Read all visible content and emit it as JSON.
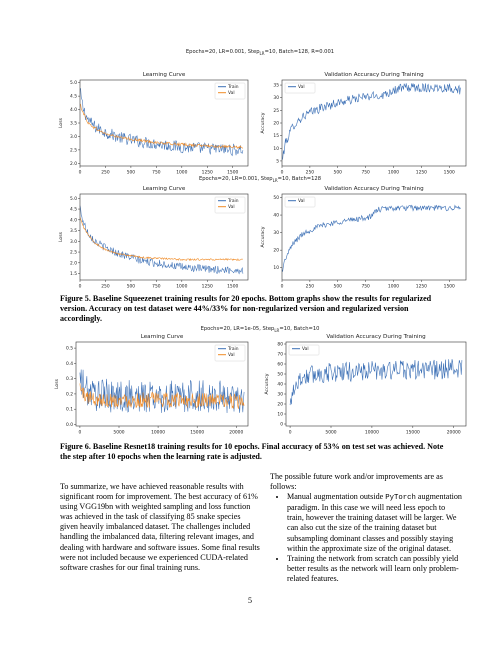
{
  "figures": [
    {
      "suptitle": "Epochs=20, LR=0.001, Step",
      "suptitle_sub": "LR",
      "suptitle_tail": "=10, Batch=128, R=0.001"
    },
    {
      "suptitle": "Epochs=20, LR=0.001, Step",
      "suptitle_sub": "LR",
      "suptitle_tail": "=10, Batch=128"
    },
    {
      "suptitle": "Epochs=20, LR=1e-05, Step",
      "suptitle_sub": "LR",
      "suptitle_tail": "=10, Batch=10"
    }
  ],
  "chart_data": [
    {
      "id": "fig5-top-loss",
      "type": "line",
      "title": "Learning Curve",
      "xlabel": "",
      "ylabel": "Loss",
      "xlim": [
        0,
        1650
      ],
      "ylim": [
        1.9,
        5.1
      ],
      "xticks": [
        0,
        250,
        500,
        750,
        1000,
        1250,
        1500
      ],
      "yticks": [
        2.0,
        2.5,
        3.0,
        3.5,
        4.0,
        4.5,
        5.0
      ],
      "ytick_labels": [
        "2.0",
        "2.5",
        "3.0",
        "3.5",
        "4.0",
        "4.5",
        "5.0"
      ],
      "legend": "top-right",
      "series": [
        {
          "name": "Train",
          "color": "#3b6fb5",
          "x": [
            0,
            30,
            80,
            150,
            250,
            400,
            600,
            800,
            1000,
            1250,
            1500,
            1600
          ],
          "y": [
            4.7,
            4.05,
            3.6,
            3.35,
            3.15,
            2.95,
            2.8,
            2.7,
            2.6,
            2.55,
            2.5,
            2.5
          ],
          "noise": 0.22
        },
        {
          "name": "Val",
          "color": "#f08a24",
          "x": [
            0,
            30,
            80,
            150,
            250,
            400,
            600,
            800,
            1000,
            1250,
            1500,
            1600
          ],
          "y": [
            4.2,
            3.9,
            3.5,
            3.3,
            3.1,
            2.95,
            2.85,
            2.75,
            2.7,
            2.65,
            2.6,
            2.6
          ],
          "noise": 0.05
        }
      ]
    },
    {
      "id": "fig5-top-acc",
      "type": "line",
      "title": "Validation Accuracy During Training",
      "xlabel": "",
      "ylabel": "Accuracy",
      "xlim": [
        0,
        1650
      ],
      "ylim": [
        3,
        37
      ],
      "xticks": [
        0,
        250,
        500,
        750,
        1000,
        1250,
        1500
      ],
      "yticks": [
        5,
        10,
        15,
        20,
        25,
        30,
        35
      ],
      "ytick_labels": [
        "5",
        "10",
        "15",
        "20",
        "25",
        "30",
        "35"
      ],
      "legend": "top-left",
      "series": [
        {
          "name": "Val",
          "color": "#3b6fb5",
          "x": [
            0,
            30,
            100,
            200,
            350,
            500,
            700,
            900,
            1000,
            1100,
            1300,
            1500,
            1600
          ],
          "y": [
            5,
            12,
            19,
            23,
            26,
            28,
            30,
            31,
            33,
            34,
            34,
            34,
            33
          ],
          "noise": 1.8
        }
      ]
    },
    {
      "id": "fig5-bottom-loss",
      "type": "line",
      "title": "Learning Curve",
      "xlabel": "",
      "ylabel": "Loss",
      "xlim": [
        0,
        1650
      ],
      "ylim": [
        1.2,
        5.2
      ],
      "xticks": [
        0,
        250,
        500,
        750,
        1000,
        1250,
        1500
      ],
      "yticks": [
        1.5,
        2.0,
        2.5,
        3.0,
        3.5,
        4.0,
        4.5,
        5.0
      ],
      "ytick_labels": [
        "1.5",
        "2.0",
        "2.5",
        "3.0",
        "3.5",
        "4.0",
        "4.5",
        "5.0"
      ],
      "legend": "top-right",
      "series": [
        {
          "name": "Train",
          "color": "#3b6fb5",
          "x": [
            0,
            30,
            80,
            150,
            250,
            400,
            600,
            800,
            1000,
            1250,
            1500,
            1600
          ],
          "y": [
            4.6,
            3.9,
            3.4,
            3.0,
            2.7,
            2.4,
            2.1,
            1.95,
            1.8,
            1.7,
            1.65,
            1.65
          ],
          "noise": 0.18
        },
        {
          "name": "Val",
          "color": "#f08a24",
          "x": [
            0,
            30,
            80,
            150,
            250,
            400,
            600,
            800,
            1000,
            1250,
            1500,
            1600
          ],
          "y": [
            4.1,
            3.7,
            3.3,
            2.9,
            2.6,
            2.4,
            2.25,
            2.2,
            2.15,
            2.15,
            2.15,
            2.15
          ],
          "noise": 0.04
        }
      ]
    },
    {
      "id": "fig5-bottom-acc",
      "type": "line",
      "title": "Validation Accuracy During Training",
      "xlabel": "",
      "ylabel": "Accuracy",
      "xlim": [
        0,
        1650
      ],
      "ylim": [
        3,
        52
      ],
      "xticks": [
        0,
        250,
        500,
        750,
        1000,
        1250,
        1500
      ],
      "yticks": [
        10,
        20,
        30,
        40,
        50
      ],
      "ytick_labels": [
        "10",
        "20",
        "30",
        "40",
        "50"
      ],
      "legend": "top-left",
      "series": [
        {
          "name": "Val",
          "color": "#3b6fb5",
          "x": [
            0,
            30,
            100,
            200,
            350,
            500,
            700,
            800,
            850,
            1000,
            1200,
            1400,
            1600
          ],
          "y": [
            8,
            15,
            24,
            30,
            34,
            36,
            38,
            39,
            43,
            44,
            44,
            44,
            44
          ],
          "noise": 1.6
        }
      ]
    },
    {
      "id": "fig6-loss",
      "type": "line",
      "title": "Learning Curve",
      "xlabel": "",
      "ylabel": "Loss",
      "xlim": [
        -500,
        21500
      ],
      "ylim": [
        -0.01,
        0.54
      ],
      "xticks": [
        0,
        5000,
        10000,
        15000,
        20000
      ],
      "yticks": [
        0.0,
        0.1,
        0.2,
        0.3,
        0.4,
        0.5
      ],
      "ytick_labels": [
        "0.0",
        "0.1",
        "0.2",
        "0.3",
        "0.4",
        "0.5"
      ],
      "legend": "top-right",
      "series": [
        {
          "name": "Train",
          "color": "#3b6fb5",
          "x": [
            0,
            400,
            1500,
            3000,
            6000,
            10000,
            15000,
            20000,
            21000
          ],
          "y": [
            0.3,
            0.25,
            0.2,
            0.19,
            0.18,
            0.18,
            0.18,
            0.18,
            0.18
          ],
          "noise": 0.11
        },
        {
          "name": "Val",
          "color": "#f08a24",
          "x": [
            0,
            400,
            1500,
            3000,
            6000,
            10000,
            15000,
            20000,
            21000
          ],
          "y": [
            0.25,
            0.2,
            0.17,
            0.16,
            0.16,
            0.16,
            0.16,
            0.15,
            0.15
          ],
          "noise": 0.05
        }
      ]
    },
    {
      "id": "fig6-acc",
      "type": "line",
      "title": "Validation Accuracy During Training",
      "xlabel": "",
      "ylabel": "Accuracy",
      "xlim": [
        -500,
        21500
      ],
      "ylim": [
        -2,
        82
      ],
      "xticks": [
        0,
        5000,
        10000,
        15000,
        20000
      ],
      "yticks": [
        0,
        10,
        20,
        30,
        40,
        50,
        60,
        70,
        80
      ],
      "ytick_labels": [
        "0",
        "10",
        "20",
        "30",
        "40",
        "50",
        "60",
        "70",
        "80"
      ],
      "legend": "top-left",
      "series": [
        {
          "name": "Val",
          "color": "#3b6fb5",
          "x": [
            0,
            300,
            1500,
            3000,
            6000,
            10000,
            15000,
            20000,
            21000
          ],
          "y": [
            15,
            35,
            47,
            50,
            52,
            53,
            54,
            55,
            55
          ],
          "noise": 10
        }
      ]
    }
  ],
  "captions": {
    "fig5": "Figure 5. Baseline Squeezenet training results for 20 epochs. Bottom graphs show the results for regularized version. Accuracy on test dataset were 44%/33% for non-regularized version and regularized version accordingly.",
    "fig6": "Figure 6. Baseline Resnet18 training results for 10 epochs. Final accuracy of 53% on test set was achieved. Note the step after 10 epochs when the learning rate is adjusted."
  },
  "body": {
    "left_paragraph": "To summarize, we have achieved reasonable results with significant room for improvement. The best accuracy of 61% using VGG19bn with weighted sampling and loss function was achieved in the task of classifying 85 snake species given heavily imbalanced dataset. The challenges included handling the imbalanced data, filtering relevant images, and dealing with hardware and software issues. Some final results were not included because we experienced CUDA-related software crashes for our final training runs.",
    "right_intro": "The possible future work and/or improvements are as follows:",
    "bullet1_before": "Manual augmentation outside ",
    "bullet1_code": "PyTorch",
    "bullet1_after": " augmentation paradigm. In this case we will need less epoch to train, however the training dataset will be larger. We can also cut the size of the training dataset but subsampling dominant classes and possibly staying within the approximate size of the original dataset.",
    "bullet2": "Training the network from scratch can possibly yield better results as the network will learn only problem-related features."
  },
  "page_number": "5"
}
